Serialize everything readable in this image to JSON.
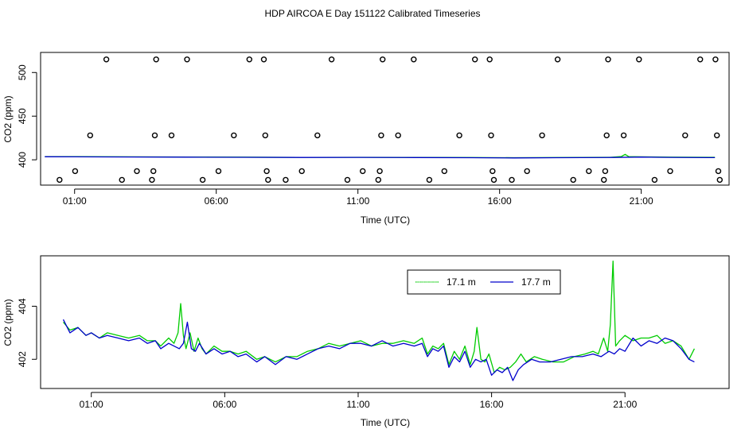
{
  "title": "HDP AIRCOA E  Day 151122  Calibrated Timeseries",
  "chart_data": [
    {
      "type": "scatter",
      "title": "",
      "xlabel": "Time (UTC)",
      "ylabel": "CO2 (ppm)",
      "xlim": [
        -0.2,
        24.1
      ],
      "ylim": [
        371,
        523
      ],
      "x_ticks": [
        {
          "value": 1,
          "label": "01:00"
        },
        {
          "value": 6,
          "label": "06:00"
        },
        {
          "value": 11,
          "label": "11:00"
        },
        {
          "value": 16,
          "label": "16:00"
        },
        {
          "value": 21,
          "label": "21:00"
        }
      ],
      "y_ticks": [
        {
          "value": 400,
          "label": "400"
        },
        {
          "value": 450,
          "label": "450"
        },
        {
          "value": 500,
          "label": "500"
        }
      ],
      "points": [
        {
          "x": 0.47,
          "y": 377
        },
        {
          "x": 1.02,
          "y": 387
        },
        {
          "x": 1.55,
          "y": 428
        },
        {
          "x": 2.12,
          "y": 515
        },
        {
          "x": 2.67,
          "y": 377
        },
        {
          "x": 3.2,
          "y": 387
        },
        {
          "x": 3.73,
          "y": 377
        },
        {
          "x": 3.78,
          "y": 387
        },
        {
          "x": 3.83,
          "y": 428
        },
        {
          "x": 3.88,
          "y": 515
        },
        {
          "x": 4.42,
          "y": 428
        },
        {
          "x": 4.97,
          "y": 515
        },
        {
          "x": 5.52,
          "y": 377
        },
        {
          "x": 6.08,
          "y": 387
        },
        {
          "x": 6.62,
          "y": 428
        },
        {
          "x": 7.17,
          "y": 515
        },
        {
          "x": 7.68,
          "y": 515
        },
        {
          "x": 7.73,
          "y": 428
        },
        {
          "x": 7.78,
          "y": 387
        },
        {
          "x": 7.83,
          "y": 377
        },
        {
          "x": 8.45,
          "y": 377
        },
        {
          "x": 9.02,
          "y": 387
        },
        {
          "x": 9.57,
          "y": 428
        },
        {
          "x": 10.07,
          "y": 515
        },
        {
          "x": 10.63,
          "y": 377
        },
        {
          "x": 11.17,
          "y": 387
        },
        {
          "x": 11.72,
          "y": 377
        },
        {
          "x": 11.77,
          "y": 387
        },
        {
          "x": 11.82,
          "y": 428
        },
        {
          "x": 11.87,
          "y": 515
        },
        {
          "x": 12.42,
          "y": 428
        },
        {
          "x": 12.97,
          "y": 515
        },
        {
          "x": 13.52,
          "y": 377
        },
        {
          "x": 14.05,
          "y": 387
        },
        {
          "x": 14.58,
          "y": 428
        },
        {
          "x": 15.13,
          "y": 515
        },
        {
          "x": 15.65,
          "y": 515
        },
        {
          "x": 15.7,
          "y": 428
        },
        {
          "x": 15.75,
          "y": 387
        },
        {
          "x": 15.8,
          "y": 377
        },
        {
          "x": 16.43,
          "y": 377
        },
        {
          "x": 16.97,
          "y": 387
        },
        {
          "x": 17.5,
          "y": 428
        },
        {
          "x": 18.05,
          "y": 515
        },
        {
          "x": 18.6,
          "y": 377
        },
        {
          "x": 19.15,
          "y": 387
        },
        {
          "x": 19.68,
          "y": 377
        },
        {
          "x": 19.73,
          "y": 387
        },
        {
          "x": 19.78,
          "y": 428
        },
        {
          "x": 19.83,
          "y": 515
        },
        {
          "x": 20.38,
          "y": 428
        },
        {
          "x": 20.92,
          "y": 515
        },
        {
          "x": 21.47,
          "y": 377
        },
        {
          "x": 22.02,
          "y": 387
        },
        {
          "x": 22.55,
          "y": 428
        },
        {
          "x": 23.08,
          "y": 515
        },
        {
          "x": 23.62,
          "y": 515
        },
        {
          "x": 23.67,
          "y": 428
        },
        {
          "x": 23.72,
          "y": 387
        },
        {
          "x": 23.77,
          "y": 377
        }
      ],
      "lines": [
        {
          "color": "#00cc00",
          "points": [
            [
              -0.05,
              403.7
            ],
            [
              1,
              403.6
            ],
            [
              3,
              403.4
            ],
            [
              5,
              403.2
            ],
            [
              7,
              403
            ],
            [
              9,
              402.8
            ],
            [
              11,
              402.9
            ],
            [
              13,
              402.7
            ],
            [
              15,
              402.6
            ],
            [
              16.5,
              402.4
            ],
            [
              18,
              402.6
            ],
            [
              19.9,
              402.9
            ],
            [
              20.3,
              403.8
            ],
            [
              20.43,
              406.2
            ],
            [
              20.56,
              403.6
            ],
            [
              21,
              403.4
            ],
            [
              22,
              403
            ],
            [
              23.6,
              402.9
            ]
          ]
        },
        {
          "color": "#0000cc",
          "points": [
            [
              -0.05,
              403.5
            ],
            [
              1,
              403.4
            ],
            [
              3,
              403.2
            ],
            [
              5,
              403
            ],
            [
              7,
              402.9
            ],
            [
              9,
              402.7
            ],
            [
              11,
              402.8
            ],
            [
              13,
              402.6
            ],
            [
              15,
              402.4
            ],
            [
              16.5,
              402.1
            ],
            [
              18,
              402.4
            ],
            [
              20,
              402.7
            ],
            [
              21,
              403.1
            ],
            [
              22,
              402.8
            ],
            [
              23.6,
              402.5
            ]
          ]
        }
      ],
      "grid": false
    },
    {
      "type": "line",
      "title": "",
      "xlabel": "Time (UTC)",
      "ylabel": "CO2 (ppm)",
      "xlim": [
        -0.9,
        24.9
      ],
      "ylim": [
        400.9,
        405.9
      ],
      "x_ticks": [
        {
          "value": 1,
          "label": "01:00"
        },
        {
          "value": 6,
          "label": "06:00"
        },
        {
          "value": 11,
          "label": "11:00"
        },
        {
          "value": 16,
          "label": "16:00"
        },
        {
          "value": 21,
          "label": "21:00"
        }
      ],
      "y_ticks": [
        {
          "value": 402,
          "label": "402"
        },
        {
          "value": 404,
          "label": "404"
        }
      ],
      "legend": {
        "position": "top-right"
      },
      "grid": false,
      "series": [
        {
          "name": "17.1 m",
          "color": "#00cc00",
          "x": [
            -0.05,
            0.2,
            0.5,
            0.8,
            1.0,
            1.3,
            1.6,
            2.0,
            2.4,
            2.8,
            3.1,
            3.4,
            3.6,
            3.9,
            4.1,
            4.25,
            4.35,
            4.45,
            4.55,
            4.7,
            4.85,
            5.0,
            5.15,
            5.3,
            5.6,
            5.9,
            6.2,
            6.5,
            6.8,
            7.2,
            7.5,
            7.9,
            8.3,
            8.7,
            9.1,
            9.5,
            9.9,
            10.3,
            10.7,
            11.1,
            11.5,
            11.9,
            12.3,
            12.7,
            13.1,
            13.4,
            13.6,
            13.8,
            14.0,
            14.2,
            14.4,
            14.6,
            14.8,
            15.0,
            15.2,
            15.35,
            15.45,
            15.6,
            15.75,
            15.9,
            16.1,
            16.3,
            16.5,
            16.7,
            16.9,
            17.1,
            17.3,
            17.6,
            17.9,
            18.3,
            18.7,
            19.1,
            19.5,
            19.8,
            20.0,
            20.2,
            20.35,
            20.45,
            20.55,
            20.65,
            20.8,
            21.0,
            21.3,
            21.6,
            21.9,
            22.2,
            22.5,
            22.8,
            23.1,
            23.4,
            23.6
          ],
          "values": [
            403.4,
            403.1,
            403.2,
            402.9,
            403.0,
            402.8,
            403.0,
            402.9,
            402.8,
            402.9,
            402.7,
            402.7,
            402.5,
            402.8,
            402.6,
            403.0,
            404.1,
            402.9,
            402.4,
            403.0,
            402.3,
            402.8,
            402.4,
            402.2,
            402.5,
            402.3,
            402.3,
            402.2,
            402.3,
            402.0,
            402.1,
            401.9,
            402.1,
            402.1,
            402.3,
            402.4,
            402.6,
            402.5,
            402.6,
            402.7,
            402.5,
            402.6,
            402.6,
            402.7,
            402.6,
            402.8,
            402.2,
            402.5,
            402.4,
            402.6,
            401.8,
            402.3,
            402.0,
            402.5,
            401.8,
            402.3,
            403.2,
            402.0,
            401.9,
            402.2,
            401.5,
            401.7,
            401.6,
            401.7,
            401.9,
            402.2,
            401.9,
            402.1,
            402.0,
            401.9,
            401.9,
            402.1,
            402.2,
            402.3,
            402.2,
            402.8,
            402.3,
            403.3,
            405.7,
            402.5,
            402.7,
            402.9,
            402.7,
            402.8,
            402.8,
            402.9,
            402.6,
            402.7,
            402.5,
            402.0,
            402.4
          ]
        },
        {
          "name": "17.7 m",
          "color": "#0000cc",
          "x": [
            -0.05,
            0.2,
            0.5,
            0.8,
            1.0,
            1.3,
            1.6,
            2.0,
            2.4,
            2.8,
            3.1,
            3.4,
            3.6,
            3.9,
            4.1,
            4.3,
            4.45,
            4.6,
            4.75,
            4.9,
            5.05,
            5.3,
            5.6,
            5.9,
            6.2,
            6.5,
            6.8,
            7.2,
            7.5,
            7.9,
            8.3,
            8.7,
            9.1,
            9.5,
            9.9,
            10.3,
            10.7,
            11.1,
            11.5,
            11.9,
            12.3,
            12.7,
            13.1,
            13.4,
            13.6,
            13.8,
            14.0,
            14.2,
            14.4,
            14.6,
            14.8,
            15.0,
            15.2,
            15.4,
            15.6,
            15.8,
            16.0,
            16.2,
            16.4,
            16.6,
            16.8,
            17.0,
            17.2,
            17.5,
            17.8,
            18.2,
            18.6,
            19.0,
            19.4,
            19.8,
            20.1,
            20.4,
            20.6,
            20.8,
            21.0,
            21.3,
            21.6,
            21.9,
            22.2,
            22.5,
            22.8,
            23.1,
            23.4,
            23.6
          ],
          "values": [
            403.5,
            403.0,
            403.2,
            402.9,
            403.0,
            402.8,
            402.9,
            402.8,
            402.7,
            402.8,
            402.6,
            402.7,
            402.4,
            402.6,
            402.5,
            402.4,
            402.6,
            403.4,
            402.4,
            402.3,
            402.6,
            402.2,
            402.4,
            402.2,
            402.3,
            402.1,
            402.2,
            401.9,
            402.1,
            401.8,
            402.1,
            402.0,
            402.2,
            402.4,
            402.5,
            402.4,
            402.6,
            402.6,
            402.5,
            402.7,
            402.5,
            402.6,
            402.5,
            402.6,
            402.1,
            402.4,
            402.3,
            402.5,
            401.7,
            402.1,
            401.9,
            402.3,
            401.7,
            402.0,
            401.9,
            402.0,
            401.4,
            401.6,
            401.5,
            401.7,
            401.2,
            401.6,
            401.8,
            402.0,
            401.9,
            401.9,
            402.0,
            402.1,
            402.1,
            402.2,
            402.1,
            402.3,
            402.2,
            402.4,
            402.3,
            402.8,
            402.5,
            402.7,
            402.6,
            402.8,
            402.7,
            402.4,
            402.0,
            401.9
          ]
        }
      ]
    }
  ]
}
